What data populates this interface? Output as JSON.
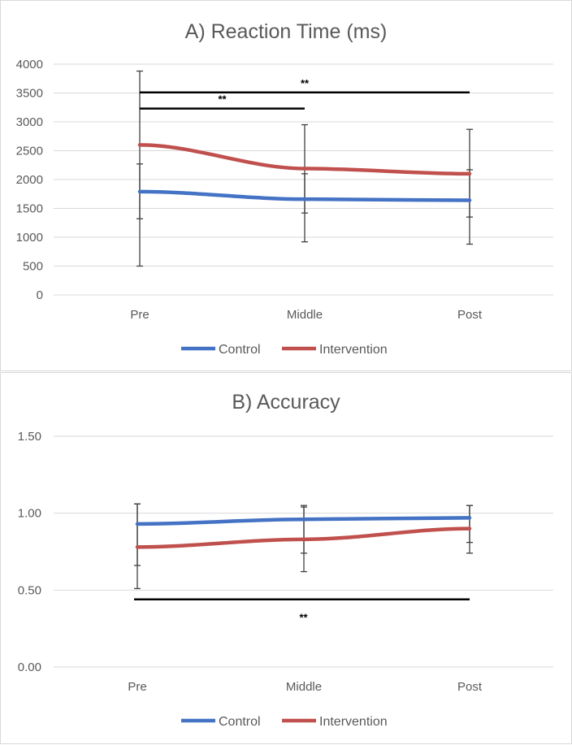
{
  "chart_data": [
    {
      "type": "line",
      "title": "A) Reaction Time (ms)",
      "categories": [
        "Pre",
        "Middle",
        "Post"
      ],
      "ylim": [
        0,
        4000
      ],
      "yticks": [
        0,
        500,
        1000,
        1500,
        2000,
        2500,
        3000,
        3500,
        4000
      ],
      "ytick_labels": [
        "0",
        "500",
        "1000",
        "1500",
        "2000",
        "2500",
        "3000",
        "3500",
        "4000"
      ],
      "grid": true,
      "legend": "bottom",
      "series": [
        {
          "name": "Control",
          "color": "#4472C4",
          "values": [
            1790,
            1660,
            1640
          ],
          "err_low": [
            1320,
            1420,
            1350
          ],
          "err_high": [
            2270,
            2100,
            2170
          ]
        },
        {
          "name": "Intervention",
          "color": "#C0504D",
          "values": [
            2600,
            2190,
            2100
          ],
          "err_low": [
            500,
            920,
            880
          ],
          "err_high": [
            3880,
            2950,
            2870
          ]
        }
      ],
      "significance": [
        {
          "from": "Pre",
          "to": "Post",
          "y": 3510,
          "label": "**"
        },
        {
          "from": "Pre",
          "to": "Middle",
          "y": 3230,
          "label": "**"
        }
      ]
    },
    {
      "type": "line",
      "title": "B) Accuracy",
      "categories": [
        "Pre",
        "Middle",
        "Post"
      ],
      "ylim": [
        0,
        1.5
      ],
      "yticks": [
        0,
        0.5,
        1.0,
        1.5
      ],
      "ytick_labels": [
        "0.00",
        "0.50",
        "1.00",
        "1.50"
      ],
      "grid": true,
      "legend": "bottom",
      "series": [
        {
          "name": "Control",
          "color": "#4472C4",
          "values": [
            0.93,
            0.96,
            0.97
          ],
          "err_low": [
            0.66,
            0.74,
            0.81
          ],
          "err_high": [
            1.06,
            1.04,
            1.05
          ]
        },
        {
          "name": "Intervention",
          "color": "#C0504D",
          "values": [
            0.78,
            0.83,
            0.9
          ],
          "err_low": [
            0.51,
            0.62,
            0.74
          ],
          "err_high": [
            1.06,
            1.05,
            1.05
          ]
        }
      ],
      "significance": [
        {
          "from": "Pre",
          "to": "Post",
          "y": 0.44,
          "label": "**",
          "label_position": "below"
        }
      ]
    }
  ]
}
